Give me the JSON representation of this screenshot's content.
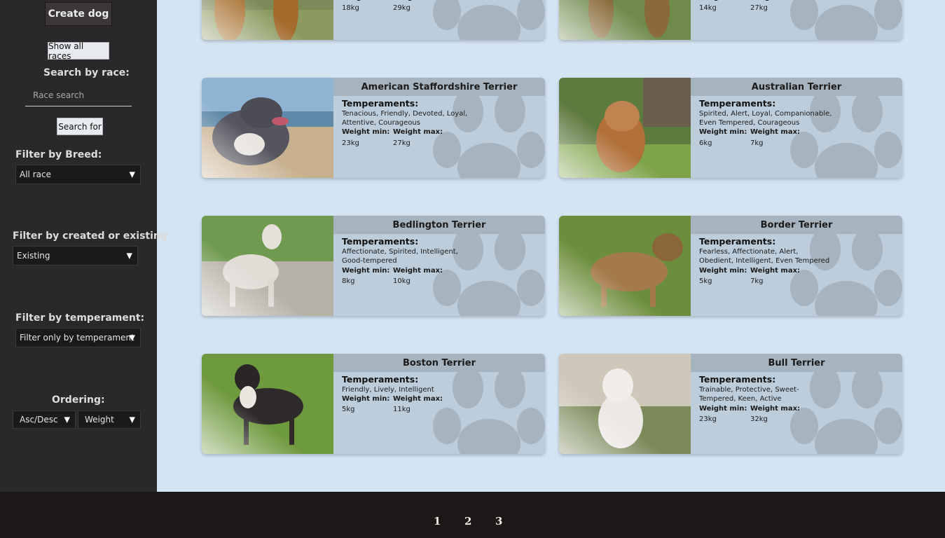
{
  "sidebar": {
    "create_label": "Create dog",
    "show_all_label": "Show all races",
    "search_by_race_label": "Search by race:",
    "race_search_placeholder": "Race search",
    "search_button_label": "Search for",
    "filter_breed_label": "Filter by Breed:",
    "filter_breed_value": "All race",
    "filter_created_label": "Filter by created or existing",
    "filter_created_value": "Existing",
    "filter_temperament_label": "Filter by temperament:",
    "filter_temperament_value": "Filter only by temperament",
    "ordering_label": "Ordering:",
    "order_direction_value": "Asc/Desc",
    "order_field_value": "Weight",
    "arrow_glyph": "▼"
  },
  "labels": {
    "temperaments": "Temperaments:",
    "weight_min": "Weight min:",
    "weight_max": "Weight max:"
  },
  "cards": [
    {
      "name": "",
      "temperaments": "",
      "weight_min": "18kg",
      "weight_max": "29kg"
    },
    {
      "name": "",
      "temperaments": "",
      "weight_min": "14kg",
      "weight_max": "27kg"
    },
    {
      "name": "American Staffordshire Terrier",
      "temperaments": "Tenacious, Friendly, Devoted, Loyal, Attentive, Courageous",
      "weight_min": "23kg",
      "weight_max": "27kg"
    },
    {
      "name": "Australian Terrier",
      "temperaments": "Spirited, Alert, Loyal, Companionable, Even Tempered, Courageous",
      "weight_min": "6kg",
      "weight_max": "7kg"
    },
    {
      "name": "Bedlington Terrier",
      "temperaments": "Affectionate, Spirited, Intelligent, Good-tempered",
      "weight_min": "8kg",
      "weight_max": "10kg"
    },
    {
      "name": "Border Terrier",
      "temperaments": "Fearless, Affectionate, Alert, Obedient, Intelligent, Even Tempered",
      "weight_min": "5kg",
      "weight_max": "7kg"
    },
    {
      "name": "Boston Terrier",
      "temperaments": "Friendly, Lively, Intelligent",
      "weight_min": "5kg",
      "weight_max": "11kg"
    },
    {
      "name": "Bull Terrier",
      "temperaments": "Trainable, Protective, Sweet-Tempered, Keen, Active",
      "weight_min": "23kg",
      "weight_max": "32kg"
    }
  ],
  "pagination": {
    "pages": [
      "1",
      "2",
      "3"
    ]
  },
  "colors": {
    "sidebar_bg": "#2b282b",
    "main_bg": "#d3e4f3",
    "card_bg": "#bccddb",
    "card_namebar": "#a6b4bf",
    "footer_bg": "#1c1817"
  }
}
